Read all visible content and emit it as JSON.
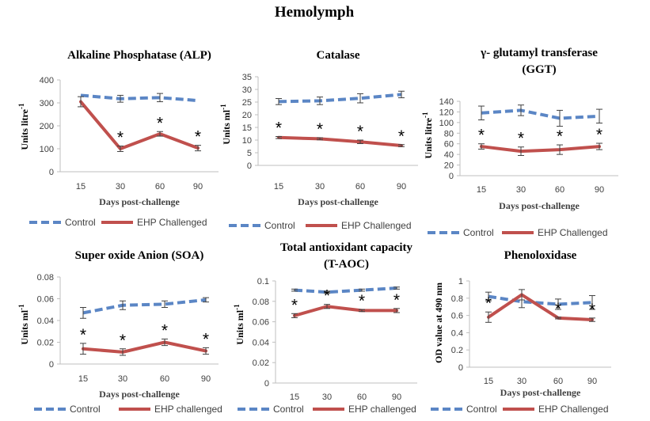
{
  "figure_title": "Hemolymph",
  "colors": {
    "control": "#5b86c5",
    "challenged": "#c0504d",
    "axis": "#bfbfbf",
    "errorbar": "#404040"
  },
  "chart_data": [
    {
      "type": "line",
      "title": "Alkaline Phosphatase (ALP)",
      "xlabel": "Days post-challenge",
      "ylabel": "Units litre",
      "ylabel_sup": "-1",
      "categories": [
        "15",
        "30",
        "60",
        "90"
      ],
      "ylim": [
        0,
        400
      ],
      "yticks": [
        "0",
        "100",
        "200",
        "300",
        "400"
      ],
      "series": [
        {
          "name": "Control",
          "values": [
            333,
            318,
            323,
            310
          ],
          "errors": [
            0,
            15,
            18,
            0
          ]
        },
        {
          "name": "EHP Challenged",
          "values": [
            305,
            100,
            165,
            103
          ],
          "errors": [
            22,
            12,
            10,
            12
          ]
        }
      ],
      "significance": [
        "",
        "*",
        "*",
        "*"
      ]
    },
    {
      "type": "line",
      "title": "Catalase",
      "xlabel": "Days post-challenge",
      "ylabel": "Units ml",
      "ylabel_sup": "-1",
      "categories": [
        "15",
        "30",
        "60",
        "90"
      ],
      "ylim": [
        0,
        35
      ],
      "yticks": [
        "0",
        "5",
        "10",
        "15",
        "20",
        "25",
        "30",
        "35"
      ],
      "series": [
        {
          "name": "Control",
          "values": [
            25.2,
            25.5,
            26.5,
            28
          ],
          "errors": [
            1.2,
            1.5,
            1.8,
            1.3
          ]
        },
        {
          "name": "EHP Challenged",
          "values": [
            11,
            10.5,
            9.3,
            7.8
          ],
          "errors": [
            0.4,
            0.4,
            0.7,
            0.4
          ]
        }
      ],
      "significance": [
        "*",
        "*",
        "*",
        "*"
      ]
    },
    {
      "type": "line",
      "title": "γ- glutamyl transferase (GGT)",
      "title_lines": [
        "γ- glutamyl transferase",
        "(GGT)"
      ],
      "xlabel": "Days post-challenge",
      "ylabel": "Units litre",
      "ylabel_sup": "-1",
      "categories": [
        "15",
        "30",
        "60",
        "90"
      ],
      "ylim": [
        0,
        140
      ],
      "yticks": [
        "0",
        "20",
        "40",
        "60",
        "80",
        "100",
        "120",
        "140"
      ],
      "series": [
        {
          "name": "Control",
          "values": [
            118,
            123,
            108,
            112
          ],
          "errors": [
            13,
            10,
            15,
            13
          ]
        },
        {
          "name": "EHP Challenged",
          "values": [
            55,
            46,
            49,
            55
          ],
          "errors": [
            5,
            8,
            9,
            6
          ]
        }
      ],
      "significance": [
        "*",
        "*",
        "*",
        "*"
      ]
    },
    {
      "type": "line",
      "title": "Super oxide Anion (SOA)",
      "xlabel": "Days post-challenge",
      "ylabel": "Units ml",
      "ylabel_sup": "-1",
      "categories": [
        "15",
        "30",
        "60",
        "90"
      ],
      "ylim": [
        0,
        0.08
      ],
      "yticks": [
        "0",
        "0.02",
        "0.04",
        "0.06",
        "0.08"
      ],
      "series": [
        {
          "name": "Control",
          "values": [
            0.047,
            0.054,
            0.055,
            0.059
          ],
          "errors": [
            0.005,
            0.004,
            0.003,
            0.002
          ]
        },
        {
          "name": "EHP challenged",
          "values": [
            0.014,
            0.011,
            0.02,
            0.012
          ],
          "errors": [
            0.005,
            0.003,
            0.003,
            0.003
          ]
        }
      ],
      "significance": [
        "*",
        "*",
        "*",
        "*"
      ]
    },
    {
      "type": "line",
      "title": "Total antioxidant capacity (T-AOC)",
      "title_lines": [
        "Total antioxidant capacity",
        "(T-AOC)"
      ],
      "xlabel": "",
      "ylabel": "Units ml",
      "ylabel_sup": "-1",
      "categories": [
        "15",
        "30",
        "60",
        "90"
      ],
      "ylim": [
        0,
        0.1
      ],
      "yticks": [
        "0",
        "0.02",
        "0.04",
        "0.06",
        "0.08",
        "0.1"
      ],
      "series": [
        {
          "name": "Control",
          "values": [
            0.091,
            0.089,
            0.091,
            0.093
          ],
          "errors": [
            0.001,
            0.001,
            0.001,
            0.001
          ]
        },
        {
          "name": "EHP challenged",
          "values": [
            0.066,
            0.075,
            0.071,
            0.071
          ],
          "errors": [
            0.002,
            0.002,
            0.001,
            0.002
          ]
        }
      ],
      "significance": [
        "*",
        "*",
        "*",
        "*"
      ]
    },
    {
      "type": "line",
      "title": "Phenoloxidase",
      "xlabel": "Days post-challenge",
      "ylabel": "OD value at 490 nm",
      "ylabel_sup": "",
      "categories": [
        "15",
        "30",
        "60",
        "90"
      ],
      "ylim": [
        0,
        1
      ],
      "yticks": [
        "0",
        "0.2",
        "0.4",
        "0.6",
        "0.8",
        "1"
      ],
      "series": [
        {
          "name": "Control",
          "values": [
            0.82,
            0.76,
            0.73,
            0.75
          ],
          "errors": [
            0.05,
            0.07,
            0.06,
            0.08
          ]
        },
        {
          "name": "EHP Challenged",
          "values": [
            0.58,
            0.84,
            0.57,
            0.55
          ],
          "errors": [
            0.06,
            0.06,
            0.01,
            0.02
          ]
        }
      ],
      "significance": [
        "*",
        "",
        "*",
        "*"
      ]
    }
  ]
}
